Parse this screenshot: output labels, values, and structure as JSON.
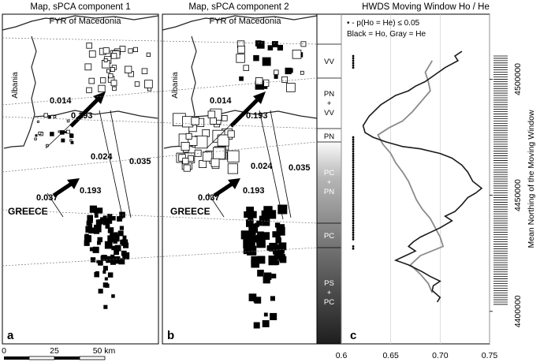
{
  "panel_a": {
    "title": "Map, sPCA component 1",
    "label": "a",
    "region_label": "FYR of Macedonia",
    "albania_label": "Albania",
    "greece_label": "GREECE",
    "flows": [
      "0.014",
      "0.193",
      "0.024",
      "0.035",
      "0.037",
      "0.193"
    ]
  },
  "panel_b": {
    "title": "Map, sPCA component 2",
    "label": "b",
    "region_label": "FYR of Macedonia",
    "albania_label": "Albania",
    "greece_label": "GREECE",
    "flows": [
      "0.014",
      "0.193",
      "0.024",
      "0.035",
      "0.037",
      "0.193"
    ]
  },
  "scale_bar": {
    "labels": [
      "0",
      "25",
      "50 km"
    ]
  },
  "segments": [
    {
      "lines": [
        "VV"
      ]
    },
    {
      "lines": [
        "PN",
        "+",
        "VV"
      ]
    },
    {
      "lines": [
        "PN"
      ]
    },
    {
      "lines": [
        "PC",
        "+",
        "PN"
      ]
    },
    {
      "lines": [
        "PC"
      ]
    },
    {
      "lines": [
        "PS",
        "+",
        "PC"
      ]
    }
  ],
  "panel_c": {
    "title": "HWDS Moving Window Ho / He",
    "label": "c",
    "legend_line1": "• - p(Ho = He) ≤ 0.05",
    "legend_line2": "Black = Ho, Gray = He",
    "x_ticks": [
      "0.6",
      "0.65",
      "0.70",
      "0.75"
    ],
    "y_ticks": [
      "4500000",
      "4450000",
      "4400000"
    ],
    "y_axis_label": "Mean Northing of the Moving Window"
  },
  "chart_data": {
    "type": "line",
    "title": "HWDS Moving Window Ho / He",
    "xlabel": "",
    "ylabel": "Mean Northing of the Moving Window",
    "xlim": [
      0.6,
      0.75
    ],
    "ylim": [
      4386000,
      4528000
    ],
    "x_ticks": [
      0.6,
      0.65,
      0.7,
      0.75
    ],
    "y_ticks": [
      4400000,
      4450000,
      4500000
    ],
    "grid": true,
    "series": [
      {
        "name": "Ho",
        "color": "#1a1a1a",
        "points": [
          [
            0.722,
            4512000
          ],
          [
            0.715,
            4510000
          ],
          [
            0.718,
            4508000
          ],
          [
            0.705,
            4505000
          ],
          [
            0.695,
            4502000
          ],
          [
            0.685,
            4499000
          ],
          [
            0.675,
            4497000
          ],
          [
            0.668,
            4495000
          ],
          [
            0.655,
            4493000
          ],
          [
            0.64,
            4489000
          ],
          [
            0.628,
            4484000
          ],
          [
            0.622,
            4480000
          ],
          [
            0.624,
            4477000
          ],
          [
            0.632,
            4475000
          ],
          [
            0.645,
            4473000
          ],
          [
            0.662,
            4471000
          ],
          [
            0.68,
            4470000
          ],
          [
            0.7,
            4468000
          ],
          [
            0.712,
            4466000
          ],
          [
            0.722,
            4463000
          ],
          [
            0.728,
            4460000
          ],
          [
            0.733,
            4456000
          ],
          [
            0.742,
            4453000
          ],
          [
            0.736,
            4451000
          ],
          [
            0.728,
            4449000
          ],
          [
            0.722,
            4446000
          ],
          [
            0.715,
            4443000
          ],
          [
            0.705,
            4441000
          ],
          [
            0.712,
            4439000
          ],
          [
            0.7,
            4436000
          ],
          [
            0.69,
            4434000
          ],
          [
            0.68,
            4432000
          ],
          [
            0.673,
            4430000
          ],
          [
            0.668,
            4428000
          ],
          [
            0.675,
            4426000
          ],
          [
            0.665,
            4424000
          ],
          [
            0.655,
            4422000
          ],
          [
            0.668,
            4420000
          ],
          [
            0.682,
            4417000
          ],
          [
            0.69,
            4415000
          ],
          [
            0.7,
            4413000
          ],
          [
            0.693,
            4411000
          ],
          [
            0.692,
            4409000
          ],
          [
            0.7,
            4406000
          ],
          [
            0.697,
            4404000
          ]
        ]
      },
      {
        "name": "He",
        "color": "#8a8a8a",
        "points": [
          [
            0.692,
            4508000
          ],
          [
            0.685,
            4503000
          ],
          [
            0.688,
            4499000
          ],
          [
            0.69,
            4495000
          ],
          [
            0.682,
            4491000
          ],
          [
            0.672,
            4486000
          ],
          [
            0.662,
            4482000
          ],
          [
            0.648,
            4479000
          ],
          [
            0.637,
            4476000
          ],
          [
            0.642,
            4472000
          ],
          [
            0.65,
            4468000
          ],
          [
            0.655,
            4464000
          ],
          [
            0.662,
            4460000
          ],
          [
            0.668,
            4456000
          ],
          [
            0.672,
            4452000
          ],
          [
            0.676,
            4448000
          ],
          [
            0.682,
            4444000
          ],
          [
            0.69,
            4440000
          ],
          [
            0.695,
            4436000
          ],
          [
            0.7,
            4432000
          ],
          [
            0.703,
            4428000
          ],
          [
            0.68,
            4424000
          ],
          [
            0.67,
            4420000
          ],
          [
            0.68,
            4416000
          ],
          [
            0.688,
            4412000
          ],
          [
            0.692,
            4408000
          ]
        ]
      }
    ],
    "significance_points_ho": [
      4510000,
      4509000,
      4508000,
      4507000,
      4506000,
      4505000,
      4475000,
      4474000,
      4473000,
      4472000,
      4471000,
      4470000,
      4469000,
      4468000,
      4467000,
      4466000,
      4465000,
      4464000,
      4463000,
      4462000,
      4461000,
      4460000,
      4459000,
      4458000,
      4457000,
      4456000,
      4455000,
      4454000,
      4453000,
      4452000,
      4451000,
      4450000,
      4449000,
      4448000,
      4447000,
      4446000,
      4445000,
      4444000,
      4443000,
      4442000,
      4441000,
      4440000,
      4439000,
      4438000,
      4437000,
      4436000,
      4435000,
      4434000,
      4433000,
      4432000,
      4431000,
      4428000,
      4427000
    ],
    "significance_x": 0.612,
    "rug": [
      4510000,
      4509000,
      4508000,
      4507000,
      4506000,
      4505000,
      4504000,
      4503000,
      4502000,
      4501000,
      4500000,
      4499000,
      4498000,
      4497000,
      4496000,
      4495000,
      4494000,
      4493000,
      4492000,
      4491000,
      4490000,
      4489000,
      4488000,
      4487000,
      4486000,
      4485000,
      4484000,
      4483000,
      4482000,
      4481000,
      4480000,
      4479000,
      4478000,
      4477000,
      4476000,
      4475000,
      4474000,
      4473000,
      4472000,
      4471000,
      4470000,
      4469000,
      4468000,
      4467000,
      4466000,
      4465000,
      4464000,
      4463000,
      4462000,
      4461000,
      4460000,
      4459000,
      4458000,
      4457000,
      4456000,
      4455000,
      4454000,
      4453000,
      4452000,
      4451000,
      4450000,
      4449000,
      4448000,
      4447000,
      4446000,
      4445000,
      4444000,
      4443000,
      4442000,
      4441000,
      4440000,
      4439000,
      4438000,
      4437000,
      4436000,
      4435000,
      4434000,
      4433000,
      4432000,
      4431000,
      4430000,
      4429000,
      4428000,
      4427000,
      4426000,
      4425000,
      4424000,
      4423000,
      4422000,
      4421000,
      4420000,
      4419000,
      4418000,
      4417000,
      4416000,
      4415000,
      4414000,
      4413000,
      4412000,
      4411000,
      4410000,
      4409000,
      4408000,
      4407000,
      4406000,
      4405000,
      4404000,
      4403000
    ]
  }
}
